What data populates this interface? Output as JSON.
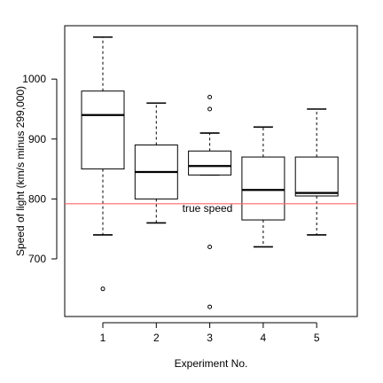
{
  "chart_data": {
    "type": "boxplot",
    "title": "",
    "xlabel": "Experiment No.",
    "ylabel": "Speed of light (km/s minus 299,000)",
    "categories": [
      "1",
      "2",
      "3",
      "4",
      "5"
    ],
    "ylim": [
      600,
      1090
    ],
    "yticks": [
      700,
      800,
      900,
      1000
    ],
    "boxes": [
      {
        "name": "1",
        "whisker_low": 740,
        "q1": 850,
        "median": 940,
        "q3": 980,
        "whisker_high": 1070,
        "outliers": [
          650
        ]
      },
      {
        "name": "2",
        "whisker_low": 760,
        "q1": 800,
        "median": 845,
        "q3": 890,
        "whisker_high": 960,
        "outliers": []
      },
      {
        "name": "3",
        "whisker_low": 840,
        "q1": 840,
        "median": 855,
        "q3": 880,
        "whisker_high": 910,
        "outliers": [
          620,
          720,
          950,
          970
        ]
      },
      {
        "name": "4",
        "whisker_low": 720,
        "q1": 765,
        "median": 815,
        "q3": 870,
        "whisker_high": 920,
        "outliers": []
      },
      {
        "name": "5",
        "whisker_low": 740,
        "q1": 805,
        "median": 810,
        "q3": 870,
        "whisker_high": 950,
        "outliers": []
      }
    ],
    "reference_line": {
      "value": 792,
      "label": "true speed",
      "color": "#ff6666"
    },
    "grid": false,
    "legend": "none"
  }
}
